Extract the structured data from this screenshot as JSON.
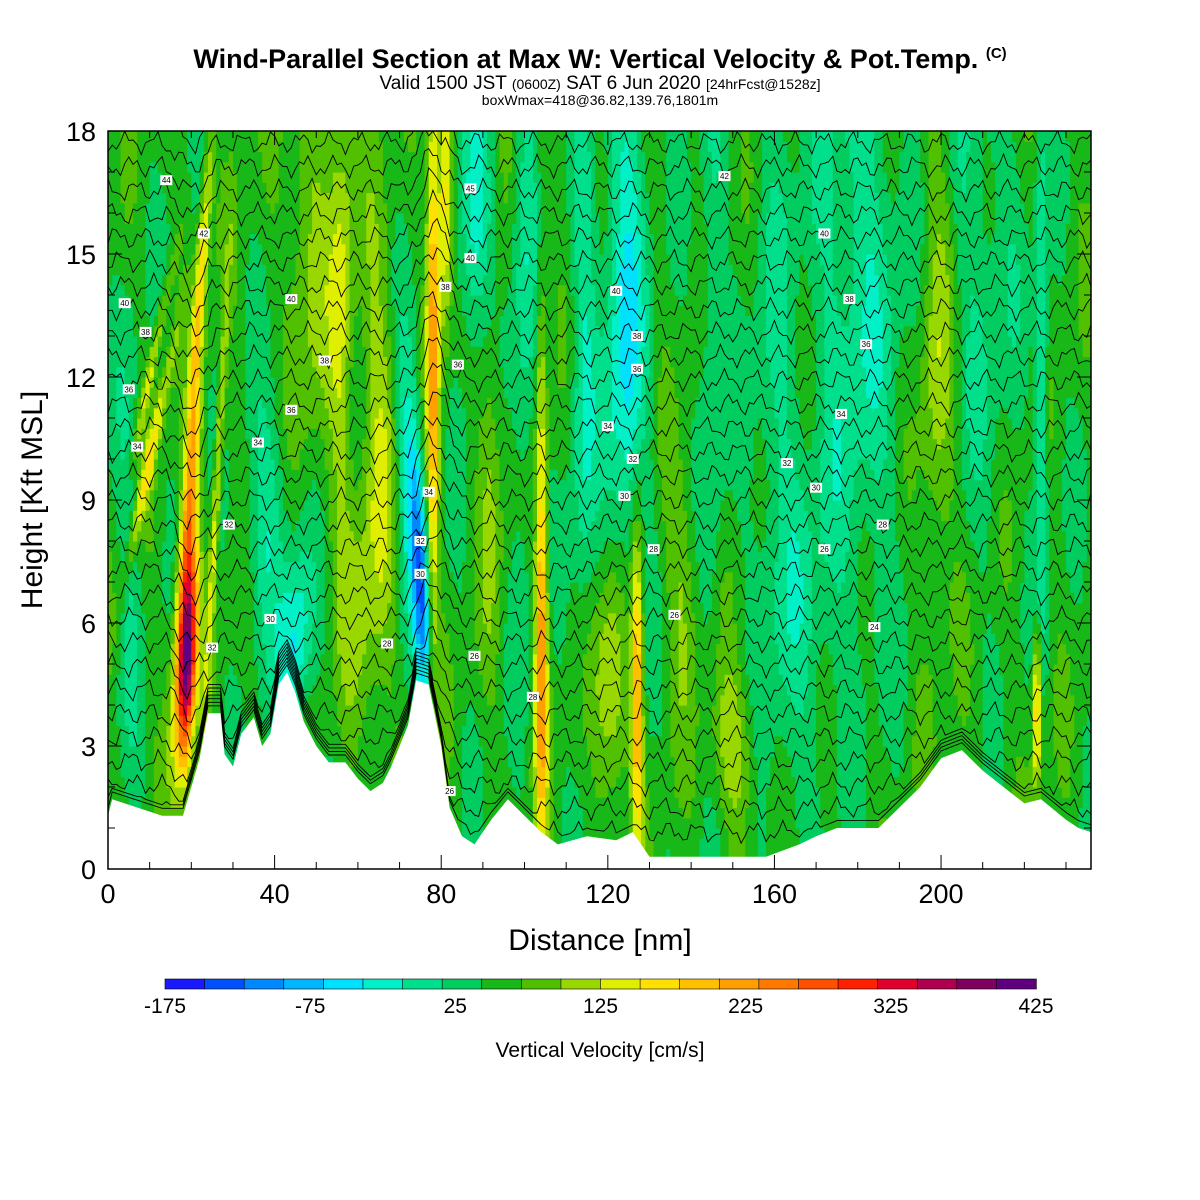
{
  "titles": {
    "main": "Wind-Parallel Section at Max W: Vertical Velocity & Pot.Temp.",
    "copyright": "(C)",
    "valid_a": "Valid 1500 JST",
    "valid_b": "(0600Z)",
    "valid_c": "SAT 6 Jun 2020",
    "valid_d": "[24hrFcst@1528z]",
    "box": "boxWmax=418@36.82,139.76,1801m"
  },
  "chart_data": {
    "type": "heatmap",
    "xlabel": "Distance [nm]",
    "ylabel": "Height [Kft MSL]",
    "xlim": [
      0,
      236
    ],
    "ylim": [
      0,
      18
    ],
    "x_ticks": [
      0,
      40,
      80,
      120,
      160,
      200
    ],
    "y_ticks": [
      0,
      3,
      6,
      9,
      12,
      15,
      18
    ],
    "colorbar": {
      "label": "Vertical Velocity [cm/s]",
      "min": -175,
      "max": 425,
      "step": 25,
      "tick_labels": [
        "-175",
        "-75",
        "25",
        "125",
        "225",
        "325",
        "425"
      ],
      "colors": [
        "#1a1aff",
        "#0050ff",
        "#0088ff",
        "#00b6ff",
        "#00e0ff",
        "#00f0c8",
        "#00e08c",
        "#00cc60",
        "#18b818",
        "#50c000",
        "#98d800",
        "#e0ee00",
        "#ffe000",
        "#ffc000",
        "#ffa000",
        "#ff7800",
        "#ff5000",
        "#ff2000",
        "#e0002c",
        "#b00050",
        "#800060",
        "#600080"
      ]
    },
    "contour_labels": [
      {
        "x": 14,
        "y": 16.8,
        "text": "44"
      },
      {
        "x": 23,
        "y": 15.5,
        "text": "42"
      },
      {
        "x": 4,
        "y": 13.8,
        "text": "40"
      },
      {
        "x": 9,
        "y": 13.1,
        "text": "38"
      },
      {
        "x": 5,
        "y": 11.7,
        "text": "36"
      },
      {
        "x": 7,
        "y": 10.3,
        "text": "34"
      },
      {
        "x": 44,
        "y": 13.9,
        "text": "40"
      },
      {
        "x": 52,
        "y": 12.4,
        "text": "38"
      },
      {
        "x": 44,
        "y": 11.2,
        "text": "36"
      },
      {
        "x": 36,
        "y": 10.4,
        "text": "34"
      },
      {
        "x": 29,
        "y": 8.4,
        "text": "32"
      },
      {
        "x": 39,
        "y": 6.1,
        "text": "30"
      },
      {
        "x": 25,
        "y": 5.4,
        "text": "32"
      },
      {
        "x": 87,
        "y": 16.6,
        "text": "45"
      },
      {
        "x": 87,
        "y": 14.9,
        "text": "40"
      },
      {
        "x": 81,
        "y": 14.2,
        "text": "38"
      },
      {
        "x": 84,
        "y": 12.3,
        "text": "36"
      },
      {
        "x": 77,
        "y": 9.2,
        "text": "34"
      },
      {
        "x": 75,
        "y": 8.0,
        "text": "32"
      },
      {
        "x": 75,
        "y": 7.2,
        "text": "30"
      },
      {
        "x": 67,
        "y": 5.5,
        "text": "28"
      },
      {
        "x": 88,
        "y": 5.2,
        "text": "26"
      },
      {
        "x": 82,
        "y": 1.9,
        "text": "26"
      },
      {
        "x": 102,
        "y": 4.2,
        "text": "28"
      },
      {
        "x": 148,
        "y": 16.9,
        "text": "42"
      },
      {
        "x": 172,
        "y": 15.5,
        "text": "40"
      },
      {
        "x": 122,
        "y": 14.1,
        "text": "40"
      },
      {
        "x": 127,
        "y": 13.0,
        "text": "38"
      },
      {
        "x": 178,
        "y": 13.9,
        "text": "38"
      },
      {
        "x": 127,
        "y": 12.2,
        "text": "36"
      },
      {
        "x": 182,
        "y": 12.8,
        "text": "36"
      },
      {
        "x": 120,
        "y": 10.8,
        "text": "34"
      },
      {
        "x": 176,
        "y": 11.1,
        "text": "34"
      },
      {
        "x": 126,
        "y": 10.0,
        "text": "32"
      },
      {
        "x": 163,
        "y": 9.9,
        "text": "32"
      },
      {
        "x": 124,
        "y": 9.1,
        "text": "30"
      },
      {
        "x": 170,
        "y": 9.3,
        "text": "30"
      },
      {
        "x": 186,
        "y": 8.4,
        "text": "28"
      },
      {
        "x": 131,
        "y": 7.8,
        "text": "28"
      },
      {
        "x": 172,
        "y": 7.8,
        "text": "26"
      },
      {
        "x": 136,
        "y": 6.2,
        "text": "26"
      },
      {
        "x": 184,
        "y": 5.9,
        "text": "24"
      }
    ]
  }
}
